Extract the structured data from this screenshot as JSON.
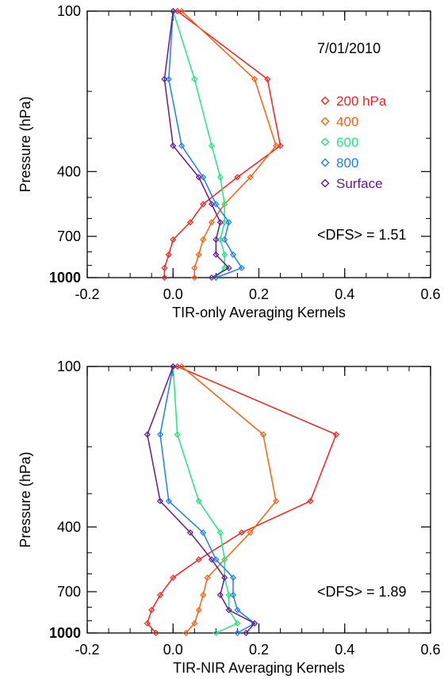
{
  "chart_data": [
    {
      "type": "line",
      "xlabel": "TIR-only Averaging Kernels",
      "ylabel": "Pressure (hPa)",
      "xlim": [
        -0.2,
        0.6
      ],
      "ylim": [
        1000,
        100
      ],
      "yscale": "log",
      "xticks": [
        "-0.2",
        "0.0",
        "0.2",
        "0.4",
        "0.6"
      ],
      "yticks": [
        "100",
        "400",
        "700",
        "1000"
      ],
      "annotations": {
        "date": "7/01/2010",
        "dfs": "<DFS> = 1.51"
      },
      "legend_position": "right",
      "series": [
        {
          "name": "200 hPa",
          "color": "#ff2020",
          "x": [
            0.01,
            0.22,
            0.25,
            0.15,
            0.07,
            0.04,
            0.0,
            -0.01,
            -0.02,
            -0.02
          ],
          "y": [
            100,
            180,
            320,
            420,
            530,
            620,
            720,
            820,
            920,
            1000
          ]
        },
        {
          "name": "400",
          "color": "#ff6010",
          "x": [
            0.02,
            0.19,
            0.24,
            0.18,
            0.12,
            0.09,
            0.07,
            0.06,
            0.05,
            0.05
          ],
          "y": [
            100,
            180,
            320,
            420,
            530,
            620,
            720,
            820,
            920,
            1000
          ]
        },
        {
          "name": "600",
          "color": "#20e880",
          "x": [
            0.0,
            0.05,
            0.09,
            0.11,
            0.12,
            0.12,
            0.11,
            0.12,
            0.12,
            0.1
          ],
          "y": [
            100,
            180,
            320,
            420,
            530,
            620,
            720,
            820,
            920,
            1000
          ]
        },
        {
          "name": "800",
          "color": "#1a7fff",
          "x": [
            0.0,
            -0.01,
            0.02,
            0.07,
            0.1,
            0.13,
            0.12,
            0.14,
            0.16,
            0.1
          ],
          "y": [
            100,
            180,
            320,
            420,
            530,
            620,
            720,
            820,
            920,
            1000
          ]
        },
        {
          "name": "Surface",
          "color": "#6a1a90",
          "x": [
            0.0,
            -0.02,
            0.0,
            0.06,
            0.09,
            0.11,
            0.1,
            0.1,
            0.13,
            0.09
          ],
          "y": [
            100,
            180,
            320,
            420,
            530,
            620,
            720,
            820,
            920,
            1000
          ]
        }
      ]
    },
    {
      "type": "line",
      "xlabel": "TIR-NIR Averaging Kernels",
      "ylabel": "Pressure (hPa)",
      "xlim": [
        -0.2,
        0.6
      ],
      "ylim": [
        1000,
        100
      ],
      "yscale": "log",
      "xticks": [
        "-0.2",
        "0.0",
        "0.2",
        "0.4",
        "0.6"
      ],
      "yticks": [
        "100",
        "400",
        "700",
        "1000"
      ],
      "annotations": {
        "dfs": "<DFS> = 1.89"
      },
      "series": [
        {
          "name": "200 hPa",
          "color": "#ff2020",
          "x": [
            0.01,
            0.38,
            0.32,
            0.16,
            0.06,
            0.0,
            -0.03,
            -0.05,
            -0.06,
            -0.04
          ],
          "y": [
            100,
            180,
            320,
            420,
            530,
            620,
            720,
            820,
            920,
            1000
          ]
        },
        {
          "name": "400",
          "color": "#ff6010",
          "x": [
            0.02,
            0.21,
            0.24,
            0.18,
            0.12,
            0.08,
            0.07,
            0.06,
            0.05,
            0.03
          ],
          "y": [
            100,
            180,
            320,
            420,
            530,
            620,
            720,
            820,
            920,
            1000
          ]
        },
        {
          "name": "600",
          "color": "#20e880",
          "x": [
            0.0,
            0.01,
            0.06,
            0.11,
            0.12,
            0.12,
            0.13,
            0.13,
            0.15,
            0.1
          ],
          "y": [
            100,
            180,
            320,
            420,
            530,
            620,
            720,
            820,
            920,
            1000
          ]
        },
        {
          "name": "800",
          "color": "#1a7fff",
          "x": [
            0.0,
            -0.03,
            -0.01,
            0.07,
            0.1,
            0.14,
            0.14,
            0.15,
            0.19,
            0.15
          ],
          "y": [
            100,
            180,
            320,
            420,
            530,
            620,
            720,
            820,
            920,
            1000
          ]
        },
        {
          "name": "Surface",
          "color": "#6a1a90",
          "x": [
            0.0,
            -0.06,
            -0.03,
            0.04,
            0.09,
            0.12,
            0.11,
            0.13,
            0.19,
            0.17
          ],
          "y": [
            100,
            180,
            320,
            420,
            530,
            620,
            720,
            820,
            920,
            1000
          ]
        }
      ]
    }
  ]
}
